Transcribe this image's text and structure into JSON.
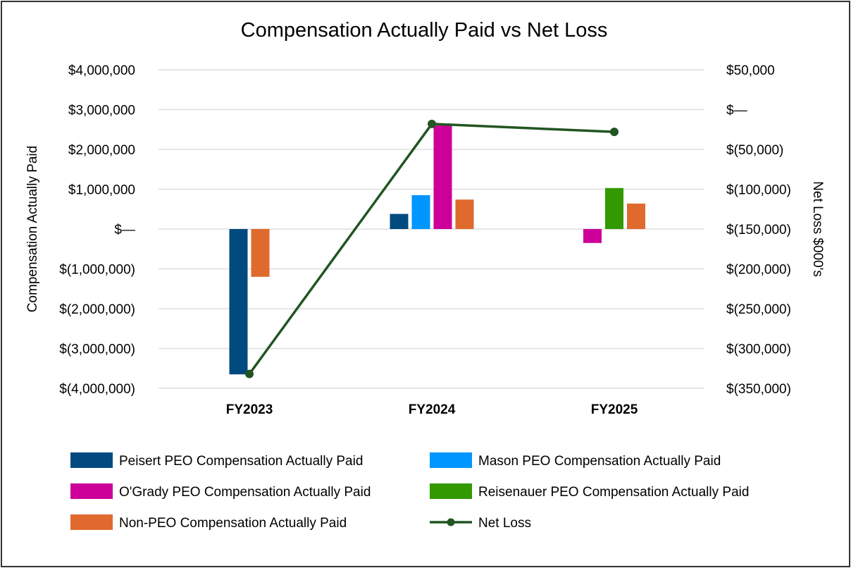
{
  "chart_data": {
    "type": "bar",
    "title": "Compensation Actually Paid vs Net Loss",
    "categories": [
      "FY2023",
      "FY2024",
      "FY2025"
    ],
    "ylabel": "Compensation Actually Paid",
    "ylabel_right": "Net Loss $000's",
    "ylim": [
      -4000000,
      4000000
    ],
    "ylim_right": [
      -350000,
      50000
    ],
    "yticks": [
      {
        "value": 4000000,
        "label": "$4,000,000"
      },
      {
        "value": 3000000,
        "label": "$3,000,000"
      },
      {
        "value": 2000000,
        "label": "$2,000,000"
      },
      {
        "value": 1000000,
        "label": "$1,000,000"
      },
      {
        "value": 0,
        "label": "$—"
      },
      {
        "value": -1000000,
        "label": "$(1,000,000)"
      },
      {
        "value": -2000000,
        "label": "$(2,000,000)"
      },
      {
        "value": -3000000,
        "label": "$(3,000,000)"
      },
      {
        "value": -4000000,
        "label": "$(4,000,000)"
      }
    ],
    "yticks_right": [
      {
        "value": 50000,
        "label": "$50,000"
      },
      {
        "value": 0,
        "label": "$—"
      },
      {
        "value": -50000,
        "label": "$(50,000)"
      },
      {
        "value": -100000,
        "label": "$(100,000)"
      },
      {
        "value": -150000,
        "label": "$(150,000)"
      },
      {
        "value": -200000,
        "label": "$(200,000)"
      },
      {
        "value": -250000,
        "label": "$(250,000)"
      },
      {
        "value": -300000,
        "label": "$(300,000)"
      },
      {
        "value": -350000,
        "label": "$(350,000)"
      }
    ],
    "grid": true,
    "series": [
      {
        "name": "Peisert PEO Compensation Actually Paid",
        "color": "#004a80",
        "values": [
          -3650000,
          380000,
          null
        ]
      },
      {
        "name": "Mason PEO Compensation Actually Paid",
        "color": "#0096ff",
        "values": [
          null,
          850000,
          null
        ]
      },
      {
        "name": "O'Grady PEO Compensation Actually Paid",
        "color": "#cc0099",
        "values": [
          null,
          2600000,
          -350000
        ]
      },
      {
        "name": "Reisenauer PEO Compensation Actually Paid",
        "color": "#339900",
        "values": [
          null,
          null,
          1030000
        ]
      },
      {
        "name": "Non-PEO Compensation Actually Paid",
        "color": "#e06a2e",
        "values": [
          -1200000,
          740000,
          640000
        ]
      }
    ],
    "line_series": {
      "name": "Net Loss",
      "color": "#225522",
      "axis": "right",
      "values": [
        -332000,
        -18000,
        -28000
      ]
    },
    "legend_position": "bottom"
  }
}
